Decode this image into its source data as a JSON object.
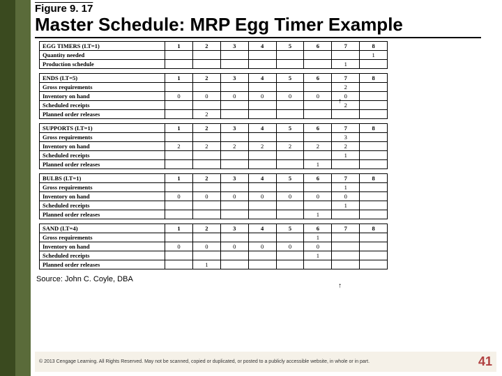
{
  "figure_label": "Figure 9. 17",
  "title": "Master Schedule: MRP Egg Timer Example",
  "periods": [
    "1",
    "2",
    "3",
    "4",
    "5",
    "6",
    "7",
    "8"
  ],
  "tables": [
    {
      "header": "EGG TIMERS (LT=1)",
      "rows": [
        {
          "label": "Quantity needed",
          "cells": [
            "",
            "",
            "",
            "",
            "",
            "",
            "",
            "1"
          ]
        },
        {
          "label": "Production schedule",
          "cells": [
            "",
            "",
            "",
            "",
            "",
            "",
            "1",
            ""
          ]
        }
      ]
    },
    {
      "header": "ENDS (LT=5)",
      "rows": [
        {
          "label": "Gross requirements",
          "cells": [
            "",
            "",
            "",
            "",
            "",
            "",
            "2",
            ""
          ]
        },
        {
          "label": "Inventory on hand",
          "cells": [
            "0",
            "0",
            "0",
            "0",
            "0",
            "0",
            "0",
            ""
          ]
        },
        {
          "label": "Scheduled receipts",
          "cells": [
            "",
            "",
            "",
            "",
            "",
            "",
            "2",
            ""
          ]
        },
        {
          "label": "Planned order releases",
          "cells": [
            "",
            "2",
            "",
            "",
            "",
            "",
            "",
            ""
          ]
        }
      ]
    },
    {
      "header": "SUPPORTS (LT=1)",
      "rows": [
        {
          "label": "Gross requirements",
          "cells": [
            "",
            "",
            "",
            "",
            "",
            "",
            "3",
            ""
          ]
        },
        {
          "label": "Inventory on hand",
          "cells": [
            "2",
            "2",
            "2",
            "2",
            "2",
            "2",
            "2",
            ""
          ]
        },
        {
          "label": "Scheduled receipts",
          "cells": [
            "",
            "",
            "",
            "",
            "",
            "",
            "1",
            ""
          ]
        },
        {
          "label": "Planned order releases",
          "cells": [
            "",
            "",
            "",
            "",
            "",
            "1",
            "",
            ""
          ]
        }
      ]
    },
    {
      "header": "BULBS (LT=1)",
      "rows": [
        {
          "label": "Gross requirements",
          "cells": [
            "",
            "",
            "",
            "",
            "",
            "",
            "1",
            ""
          ]
        },
        {
          "label": "Inventory on hand",
          "cells": [
            "0",
            "0",
            "0",
            "0",
            "0",
            "0",
            "0",
            ""
          ]
        },
        {
          "label": "Scheduled receipts",
          "cells": [
            "",
            "",
            "",
            "",
            "",
            "",
            "1",
            ""
          ]
        },
        {
          "label": "Planned order releases",
          "cells": [
            "",
            "",
            "",
            "",
            "",
            "1",
            "",
            ""
          ]
        }
      ]
    },
    {
      "header": "SAND (LT=4)",
      "rows": [
        {
          "label": "Gross requirements",
          "cells": [
            "",
            "",
            "",
            "",
            "",
            "1",
            "",
            ""
          ]
        },
        {
          "label": "Inventory on hand",
          "cells": [
            "0",
            "0",
            "0",
            "0",
            "0",
            "0",
            "",
            ""
          ]
        },
        {
          "label": "Scheduled receipts",
          "cells": [
            "",
            "",
            "",
            "",
            "",
            "1",
            "",
            ""
          ]
        },
        {
          "label": "Planned order releases",
          "cells": [
            "",
            "1",
            "",
            "",
            "",
            "",
            "",
            ""
          ]
        }
      ]
    }
  ],
  "source": "Source: John C. Coyle, DBA",
  "copyright": "© 2013 Cengage Learning. All Rights Reserved. May not be scanned, copied or duplicated, or posted to a publicly accessible website, in whole or in part.",
  "pagenum": "41",
  "colors": {
    "sidebar_dark": "#3a4a1f",
    "sidebar_light": "#5a6b3a",
    "footer_bg": "#f5f1e8",
    "pagenum_color": "#b04040"
  }
}
